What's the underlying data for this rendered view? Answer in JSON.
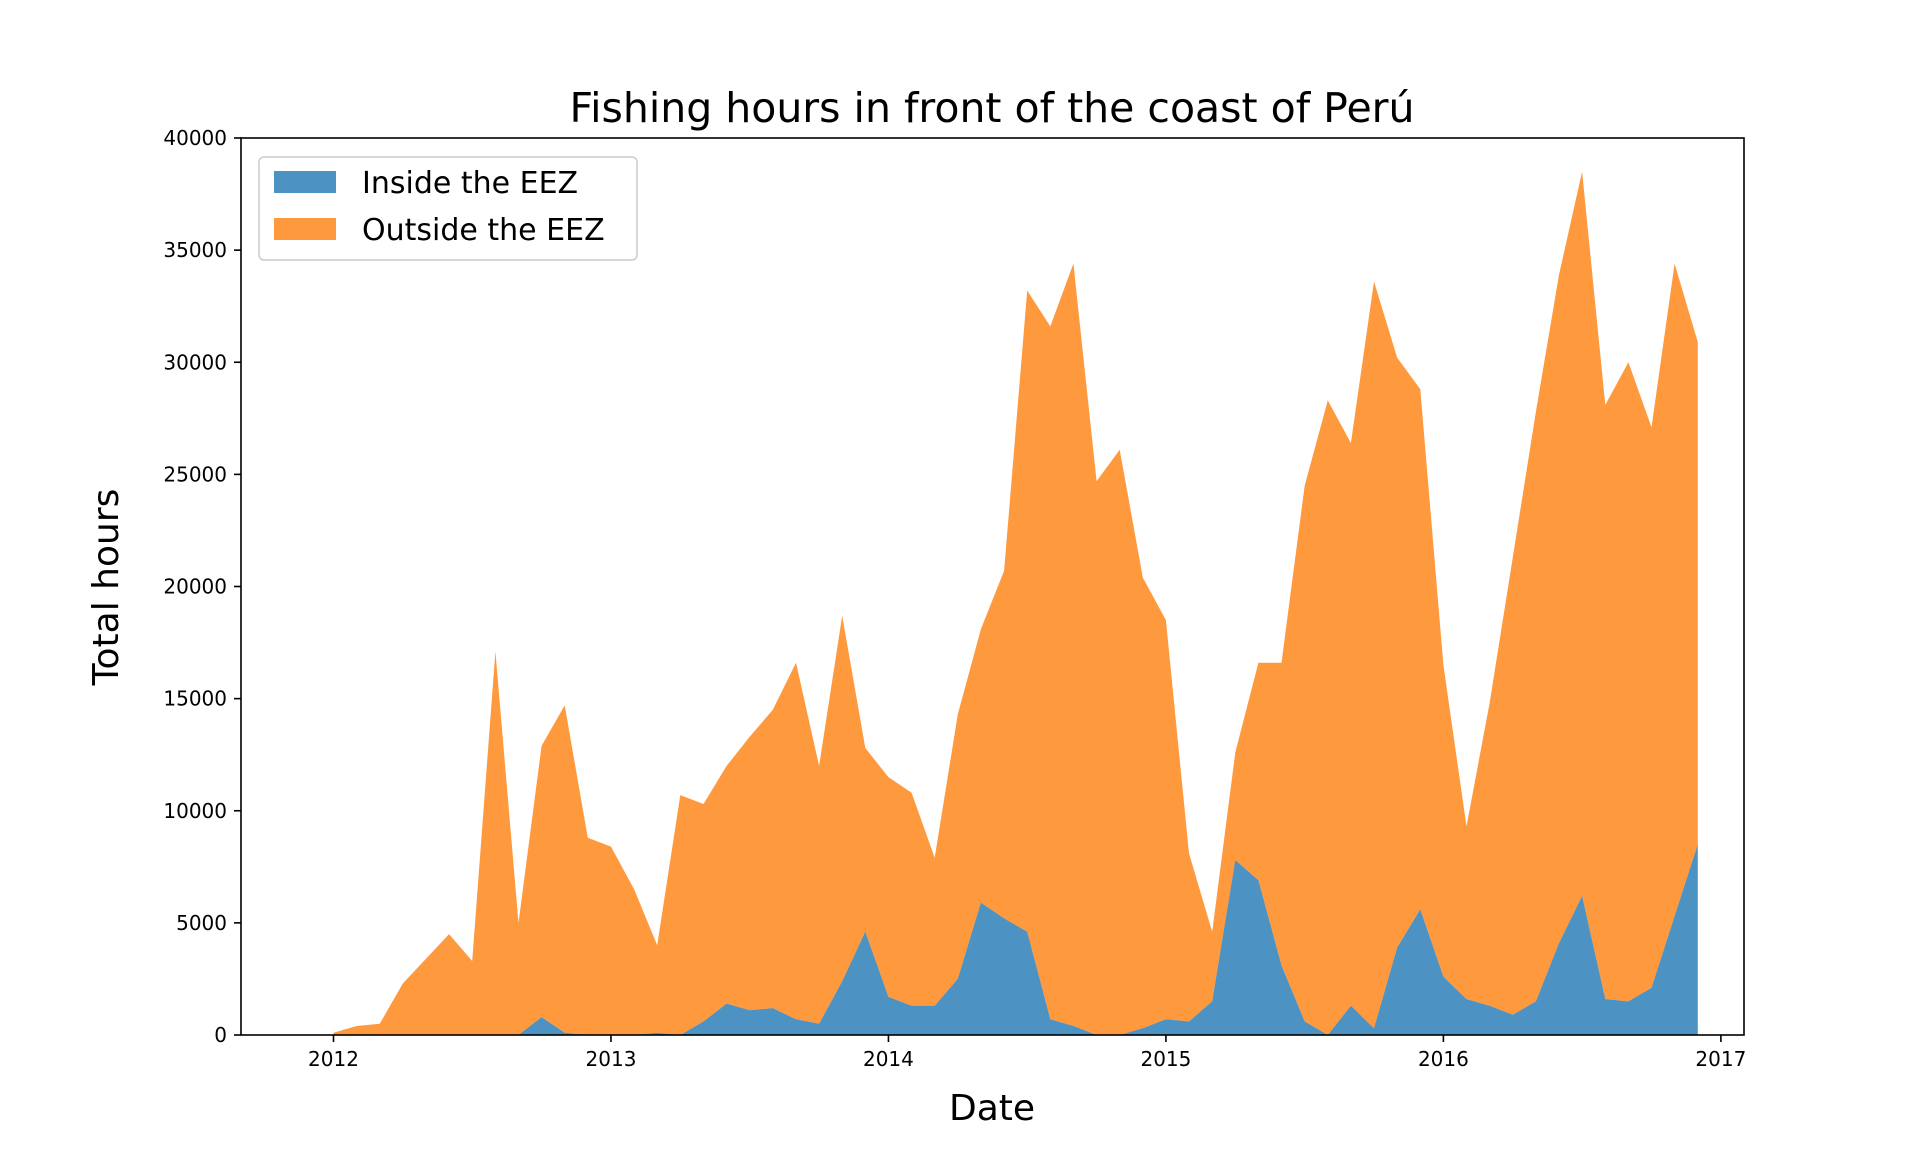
{
  "chart_data": {
    "type": "area",
    "stacked": true,
    "title": "Fishing hours in front of the coast of Perú",
    "xlabel": "Date",
    "ylabel": "Total hours",
    "ylim": [
      0,
      40000
    ],
    "xlim": [
      "2011-09",
      "2017-02"
    ],
    "yticks": [
      0,
      5000,
      10000,
      15000,
      20000,
      25000,
      30000,
      35000,
      40000
    ],
    "xticks": [
      "2012",
      "2013",
      "2014",
      "2015",
      "2016",
      "2017"
    ],
    "legend_position": "top-left",
    "grid": false,
    "x": [
      "2012-01",
      "2012-02",
      "2012-03",
      "2012-04",
      "2012-05",
      "2012-06",
      "2012-07",
      "2012-08",
      "2012-09",
      "2012-10",
      "2012-11",
      "2012-12",
      "2013-01",
      "2013-02",
      "2013-03",
      "2013-04",
      "2013-05",
      "2013-06",
      "2013-07",
      "2013-08",
      "2013-09",
      "2013-10",
      "2013-11",
      "2013-12",
      "2014-01",
      "2014-02",
      "2014-03",
      "2014-04",
      "2014-05",
      "2014-06",
      "2014-07",
      "2014-08",
      "2014-09",
      "2014-10",
      "2014-11",
      "2014-12",
      "2015-01",
      "2015-02",
      "2015-03",
      "2015-04",
      "2015-05",
      "2015-06",
      "2015-07",
      "2015-08",
      "2015-09",
      "2015-10",
      "2015-11",
      "2015-12",
      "2016-01",
      "2016-02",
      "2016-03",
      "2016-04",
      "2016-05",
      "2016-06",
      "2016-07",
      "2016-08",
      "2016-09",
      "2016-10",
      "2016-11",
      "2016-12"
    ],
    "series": [
      {
        "name": "Inside the EEZ",
        "color": "#1f77b4",
        "values": [
          0,
          0,
          0,
          0,
          0,
          0,
          0,
          0,
          0,
          800,
          100,
          0,
          0,
          0,
          100,
          0,
          600,
          1400,
          1100,
          1200,
          700,
          500,
          2400,
          4600,
          1700,
          1300,
          1300,
          2500,
          5900,
          5200,
          4600,
          700,
          400,
          0,
          0,
          300,
          700,
          600,
          1500,
          7800,
          6900,
          3100,
          600,
          0,
          1300,
          300,
          3900,
          5600,
          2600,
          1600,
          1300,
          900,
          1500,
          4100,
          6200,
          1600,
          1500,
          2100,
          5300,
          8500
        ]
      },
      {
        "name": "Outside the EEZ",
        "color": "#ff7f0e",
        "values": [
          100,
          400,
          500,
          2300,
          3400,
          4500,
          3300,
          17100,
          5000,
          12100,
          14600,
          8800,
          8400,
          6500,
          3900,
          10700,
          9700,
          10600,
          12200,
          13300,
          15900,
          11500,
          16300,
          8200,
          9800,
          9500,
          6600,
          11800,
          12200,
          15500,
          28600,
          30900,
          34000,
          24700,
          26100,
          20100,
          17800,
          7500,
          3100,
          4800,
          9700,
          13500,
          23900,
          28300,
          25100,
          33300,
          26300,
          23200,
          13900,
          7700,
          13500,
          20400,
          26300,
          29800,
          32300,
          26500,
          28500,
          25000,
          29100,
          22400
        ]
      }
    ]
  }
}
